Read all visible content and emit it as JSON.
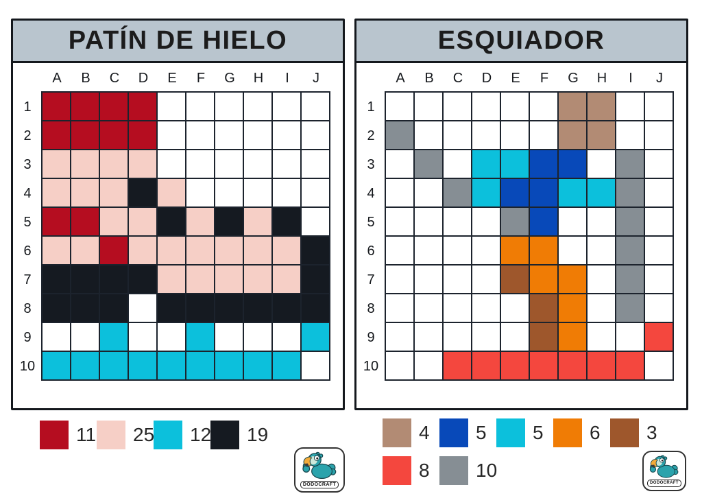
{
  "colors": {
    "header_bg": "#b9c5ce",
    "grid_line": "#1c232d",
    "card_border": "#14181d",
    "page_bg": "#ffffff"
  },
  "palette": {
    "_": "#ffffff",
    "r": "#b50d20",
    "p": "#f6cfc6",
    "c": "#0cc0dc",
    "k": "#151a21",
    "t": "#b28b74",
    "b": "#0849b9",
    "o": "#f07c05",
    "n": "#9e572c",
    "e": "#f4473e",
    "g": "#868e94"
  },
  "cards": [
    {
      "title": "PATÍN DE HIELO",
      "columns": [
        "A",
        "B",
        "C",
        "D",
        "E",
        "F",
        "G",
        "H",
        "I",
        "J"
      ],
      "row_labels": [
        "1",
        "2",
        "3",
        "4",
        "5",
        "6",
        "7",
        "8",
        "9",
        "10"
      ],
      "grid": [
        "rrrr______",
        "rrrr______",
        "pppp______",
        "pppkp_____",
        "rrppkpkpk_",
        "pprppppppk",
        "kkkkpppppk",
        "kkk_kkkkkk",
        "__c__c___c",
        "ccccccccc_"
      ],
      "legend_rows": [
        [
          {
            "key": "r",
            "count": "11"
          },
          {
            "key": "p",
            "count": "25"
          },
          {
            "key": "c",
            "count": "12"
          },
          {
            "key": "k",
            "count": "19"
          }
        ]
      ]
    },
    {
      "title": "ESQUIADOR",
      "columns": [
        "A",
        "B",
        "C",
        "D",
        "E",
        "F",
        "G",
        "H",
        "I",
        "J"
      ],
      "row_labels": [
        "1",
        "2",
        "3",
        "4",
        "5",
        "6",
        "7",
        "8",
        "9",
        "10"
      ],
      "grid": [
        "______tt__",
        "g_____tt__",
        "_g_ccbb_g_",
        "__gcbbccg_",
        "____gb__g_",
        "____oo__g_",
        "____noo_g_",
        "_____no_g_",
        "_____no__e",
        "__eeeeeee_"
      ],
      "legend_rows": [
        [
          {
            "key": "t",
            "count": "4"
          },
          {
            "key": "b",
            "count": "5"
          },
          {
            "key": "c",
            "count": "5"
          },
          {
            "key": "o",
            "count": "6"
          },
          {
            "key": "n",
            "count": "3"
          }
        ],
        [
          {
            "key": "e",
            "count": "8"
          },
          {
            "key": "g",
            "count": "10"
          }
        ]
      ]
    }
  ],
  "logo": {
    "label": "DODOCRAFT",
    "bird_body": "#2ba3ac",
    "bird_face": "#cde8da",
    "beak": "#f3ab3a"
  }
}
